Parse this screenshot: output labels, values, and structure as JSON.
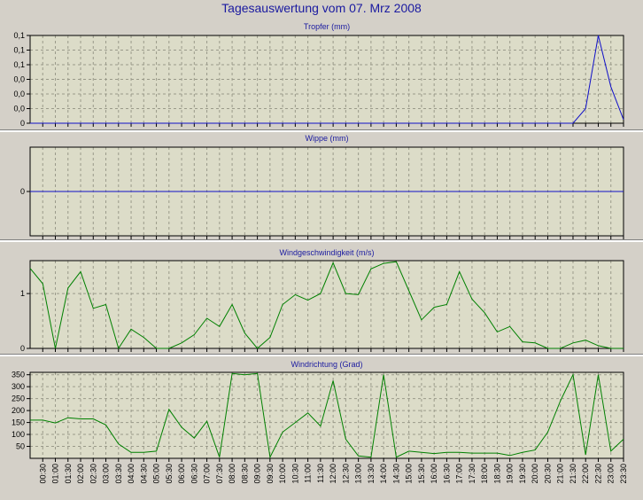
{
  "page": {
    "title": "Tagesauswertung vom 07. Mrz 2008"
  },
  "colors": {
    "background": "#d4d0c8",
    "plot_background": "#dcdcc8",
    "title": "#1a1aa0",
    "rain_line": "#1010c8",
    "wind_line": "#008000"
  },
  "time_labels": [
    "00:30",
    "01:00",
    "01:30",
    "02:00",
    "02:30",
    "03:00",
    "03:30",
    "04:00",
    "04:30",
    "05:00",
    "05:30",
    "06:00",
    "06:30",
    "07:00",
    "07:30",
    "08:00",
    "08:30",
    "09:00",
    "09:30",
    "10:00",
    "10:30",
    "11:00",
    "11:30",
    "12:00",
    "12:30",
    "13:00",
    "13:30",
    "14:00",
    "14:30",
    "15:00",
    "15:30",
    "16:00",
    "16:30",
    "17:00",
    "17:30",
    "18:00",
    "18:30",
    "19:00",
    "19:30",
    "20:00",
    "20:30",
    "21:00",
    "21:30",
    "22:00",
    "22:30",
    "23:00",
    "23:30"
  ],
  "chart_data": [
    {
      "type": "line",
      "title": "Tropfer (mm)",
      "ylim": [
        0,
        0.12
      ],
      "y_tick_labels": [
        {
          "value": 0,
          "label": "0"
        },
        {
          "value": 0.02,
          "label": "0,0"
        },
        {
          "value": 0.04,
          "label": "0,0"
        },
        {
          "value": 0.06,
          "label": "0,0"
        },
        {
          "value": 0.08,
          "label": "0,1"
        },
        {
          "value": 0.1,
          "label": "0,1"
        },
        {
          "value": 0.12,
          "label": "0,1"
        }
      ],
      "x_range": [
        0,
        47
      ],
      "grid": true,
      "series": [
        {
          "color": "#1010c8",
          "x": [
            0,
            1,
            2,
            3,
            4,
            5,
            6,
            7,
            8,
            9,
            10,
            11,
            12,
            13,
            14,
            15,
            16,
            17,
            18,
            19,
            20,
            21,
            22,
            23,
            24,
            25,
            26,
            27,
            28,
            29,
            30,
            31,
            32,
            33,
            34,
            35,
            36,
            37,
            38,
            39,
            40,
            41,
            42,
            43,
            44,
            45,
            46,
            47
          ],
          "values": [
            0,
            0,
            0,
            0,
            0,
            0,
            0,
            0,
            0,
            0,
            0,
            0,
            0,
            0,
            0,
            0,
            0,
            0,
            0,
            0,
            0,
            0,
            0,
            0,
            0,
            0,
            0,
            0,
            0,
            0,
            0,
            0,
            0,
            0,
            0,
            0,
            0,
            0,
            0,
            0,
            0,
            0,
            0,
            0,
            0.02,
            0.12,
            0.05,
            0.005
          ]
        }
      ]
    },
    {
      "type": "line",
      "title": "Wippe (mm)",
      "ylim": [
        -1,
        1
      ],
      "y_tick_labels": [
        {
          "value": 0,
          "label": "0"
        }
      ],
      "x_range": [
        0,
        47
      ],
      "grid": true,
      "series": [
        {
          "color": "#1010c8",
          "x": [
            0,
            47
          ],
          "values": [
            0,
            0
          ]
        }
      ]
    },
    {
      "type": "line",
      "title": "Windgeschwindigkeit (m/s)",
      "ylim": [
        0,
        1.6
      ],
      "y_tick_labels": [
        {
          "value": 0,
          "label": "0"
        },
        {
          "value": 1,
          "label": "1"
        }
      ],
      "x_range": [
        0,
        47
      ],
      "grid": true,
      "series": [
        {
          "color": "#008000",
          "x": [
            0,
            1,
            2,
            3,
            4,
            5,
            6,
            7,
            8,
            9,
            10,
            11,
            12,
            13,
            14,
            15,
            16,
            17,
            18,
            19,
            20,
            21,
            22,
            23,
            24,
            25,
            26,
            27,
            28,
            29,
            30,
            31,
            32,
            33,
            34,
            35,
            36,
            37,
            38,
            39,
            40,
            41,
            42,
            43,
            44,
            45,
            46,
            47
          ],
          "values": [
            1.46,
            1.18,
            0.0,
            1.1,
            1.4,
            0.73,
            0.8,
            0.0,
            0.35,
            0.2,
            0.0,
            0.0,
            0.1,
            0.25,
            0.55,
            0.4,
            0.8,
            0.28,
            0.0,
            0.2,
            0.8,
            0.98,
            0.88,
            1.0,
            1.56,
            1.0,
            0.98,
            1.45,
            1.55,
            1.58,
            1.05,
            0.52,
            0.75,
            0.8,
            1.4,
            0.9,
            0.65,
            0.3,
            0.4,
            0.12,
            0.1,
            0.0,
            0.0,
            0.1,
            0.15,
            0.05,
            0.0,
            0.0
          ]
        }
      ]
    },
    {
      "type": "line",
      "title": "Windrichtung (Grad)",
      "ylim": [
        0,
        360
      ],
      "y_tick_labels": [
        {
          "value": 50,
          "label": "50"
        },
        {
          "value": 100,
          "label": "100"
        },
        {
          "value": 150,
          "label": "150"
        },
        {
          "value": 200,
          "label": "200"
        },
        {
          "value": 250,
          "label": "250"
        },
        {
          "value": 300,
          "label": "300"
        },
        {
          "value": 350,
          "label": "350"
        }
      ],
      "x_range": [
        0,
        47
      ],
      "grid": true,
      "series": [
        {
          "color": "#008000",
          "x": [
            0,
            1,
            2,
            3,
            4,
            5,
            6,
            7,
            8,
            9,
            10,
            11,
            12,
            13,
            14,
            15,
            16,
            17,
            18,
            19,
            20,
            21,
            22,
            23,
            24,
            25,
            26,
            27,
            28,
            29,
            30,
            31,
            32,
            33,
            34,
            35,
            36,
            37,
            38,
            39,
            40,
            41,
            42,
            43,
            44,
            45,
            46,
            47
          ],
          "values": [
            160,
            160,
            148,
            170,
            165,
            165,
            140,
            60,
            25,
            25,
            30,
            205,
            130,
            85,
            155,
            5,
            355,
            350,
            355,
            5,
            110,
            150,
            190,
            135,
            325,
            80,
            10,
            5,
            350,
            5,
            30,
            25,
            20,
            25,
            25,
            22,
            22,
            22,
            12,
            25,
            35,
            110,
            240,
            350,
            15,
            350,
            30,
            80
          ]
        }
      ]
    }
  ]
}
